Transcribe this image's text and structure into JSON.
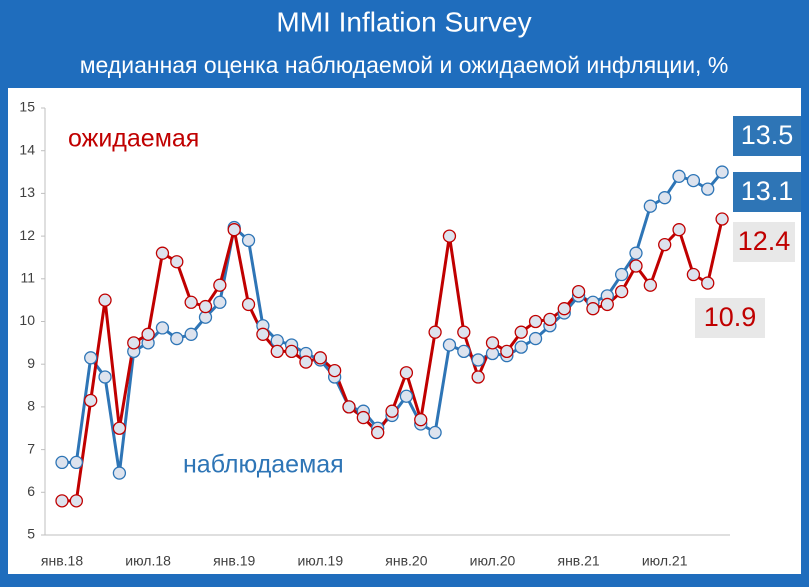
{
  "chart_data": {
    "type": "line",
    "title": "MMI Inflation Survey",
    "subtitle": "медианная оценка наблюдаемой и ожидаемой инфляции, %",
    "categories": [
      "янв.18",
      null,
      null,
      null,
      null,
      null,
      "июл.18",
      null,
      null,
      null,
      null,
      null,
      "янв.19",
      null,
      null,
      null,
      null,
      null,
      "июл.19",
      null,
      null,
      null,
      null,
      null,
      "янв.20",
      null,
      null,
      null,
      null,
      null,
      "июл.20",
      null,
      null,
      null,
      null,
      null,
      "янв.21",
      null,
      null,
      null,
      null,
      null,
      "июл.21",
      null,
      null,
      null,
      null
    ],
    "series": [
      {
        "name": "наблюдаемая",
        "color": "#2e75b6",
        "values": [
          6.7,
          6.7,
          9.15,
          8.7,
          6.45,
          9.3,
          9.5,
          9.85,
          9.6,
          9.7,
          10.1,
          10.45,
          12.2,
          11.9,
          9.9,
          9.55,
          9.45,
          9.25,
          9.1,
          8.7,
          8.0,
          7.9,
          7.5,
          7.8,
          8.25,
          7.6,
          7.4,
          9.45,
          9.3,
          9.1,
          9.25,
          9.2,
          9.4,
          9.6,
          9.9,
          10.2,
          10.6,
          10.45,
          10.6,
          11.1,
          11.6,
          12.7,
          12.9,
          13.4,
          13.3,
          13.1,
          13.5
        ]
      },
      {
        "name": "ожидаемая",
        "color": "#c00000",
        "values": [
          5.8,
          5.8,
          8.15,
          10.5,
          7.5,
          9.5,
          9.7,
          11.6,
          11.4,
          10.45,
          10.35,
          10.85,
          12.15,
          10.4,
          9.7,
          9.3,
          9.3,
          9.05,
          9.15,
          8.85,
          8.0,
          7.75,
          7.4,
          7.9,
          8.8,
          7.7,
          9.75,
          12.0,
          9.75,
          8.7,
          9.5,
          9.3,
          9.75,
          10.0,
          10.05,
          10.3,
          10.7,
          10.3,
          10.4,
          10.7,
          11.3,
          10.85,
          11.8,
          12.15,
          11.1,
          10.9,
          12.4
        ]
      }
    ],
    "ylim": [
      5,
      15
    ],
    "yticks": [
      5,
      6,
      7,
      8,
      9,
      10,
      11,
      12,
      13,
      14,
      15
    ],
    "grid": false
  }
}
